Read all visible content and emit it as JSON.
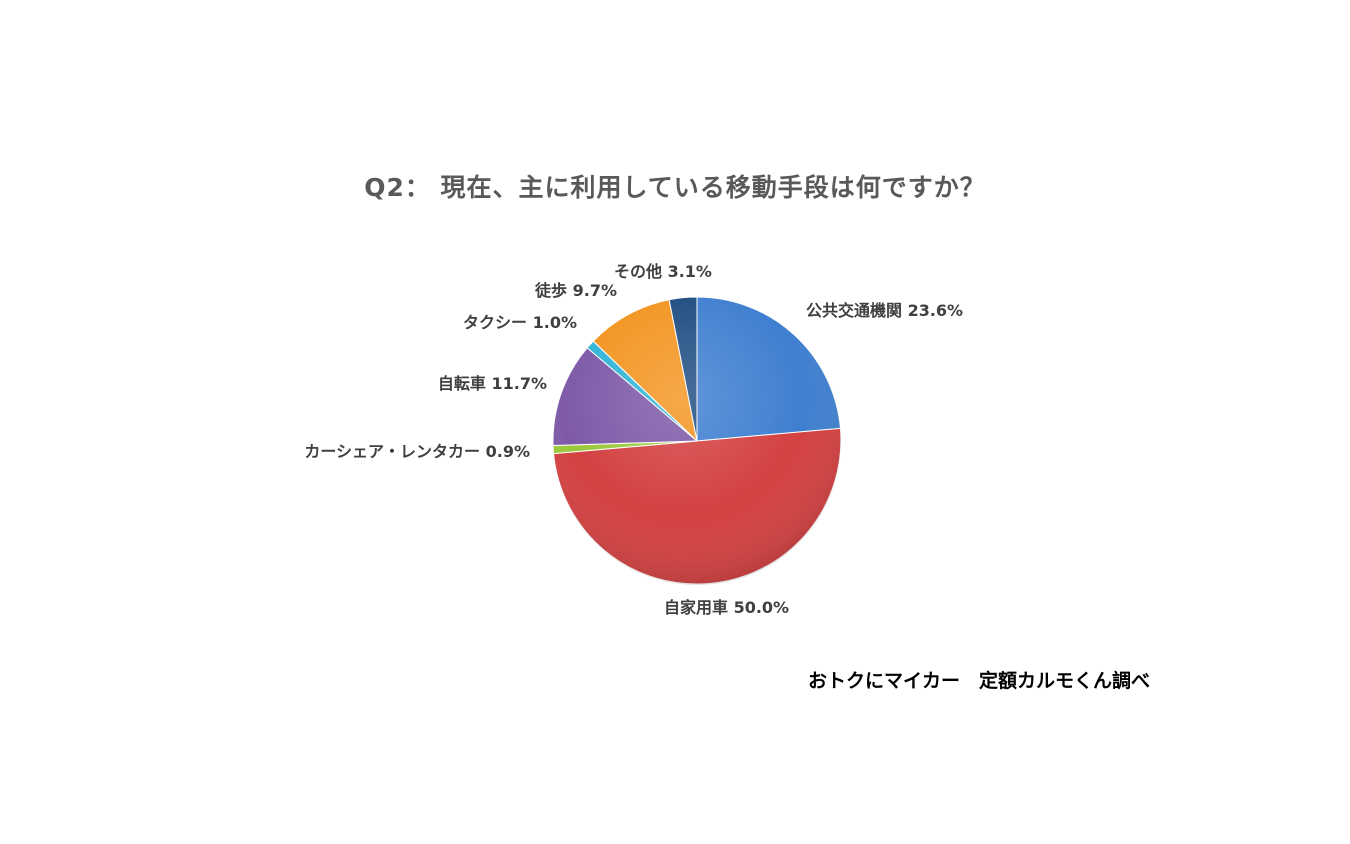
{
  "chart_data": {
    "type": "pie",
    "title": "Q2： 現在、主に利用している移動手段は何ですか？",
    "start_angle_deg": 0,
    "direction": "clockwise",
    "slices": [
      {
        "label": "公共交通機関",
        "value": 23.6,
        "display": "公共交通機関 23.6%",
        "color": "#3F7FD0"
      },
      {
        "label": "自家用車",
        "value": 50.0,
        "display": "自家用車 50.0%",
        "color": "#D44141"
      },
      {
        "label": "カーシェア・レンタカー",
        "value": 0.9,
        "display": "カーシェア・レンタカー 0.9%",
        "color": "#9BC93B"
      },
      {
        "label": "自転車",
        "value": 11.7,
        "display": "自転車 11.7%",
        "color": "#7E5AA8"
      },
      {
        "label": "タクシー",
        "value": 1.0,
        "display": "タクシー 1.0%",
        "color": "#33B5D8"
      },
      {
        "label": "徒歩",
        "value": 9.7,
        "display": "徒歩 9.7%",
        "color": "#F39522"
      },
      {
        "label": "その他",
        "value": 3.1,
        "display": "その他 3.1%",
        "color": "#1F4E82"
      }
    ],
    "legend": "none"
  },
  "credit": "おトクにマイカー　定額カルモくん調べ"
}
